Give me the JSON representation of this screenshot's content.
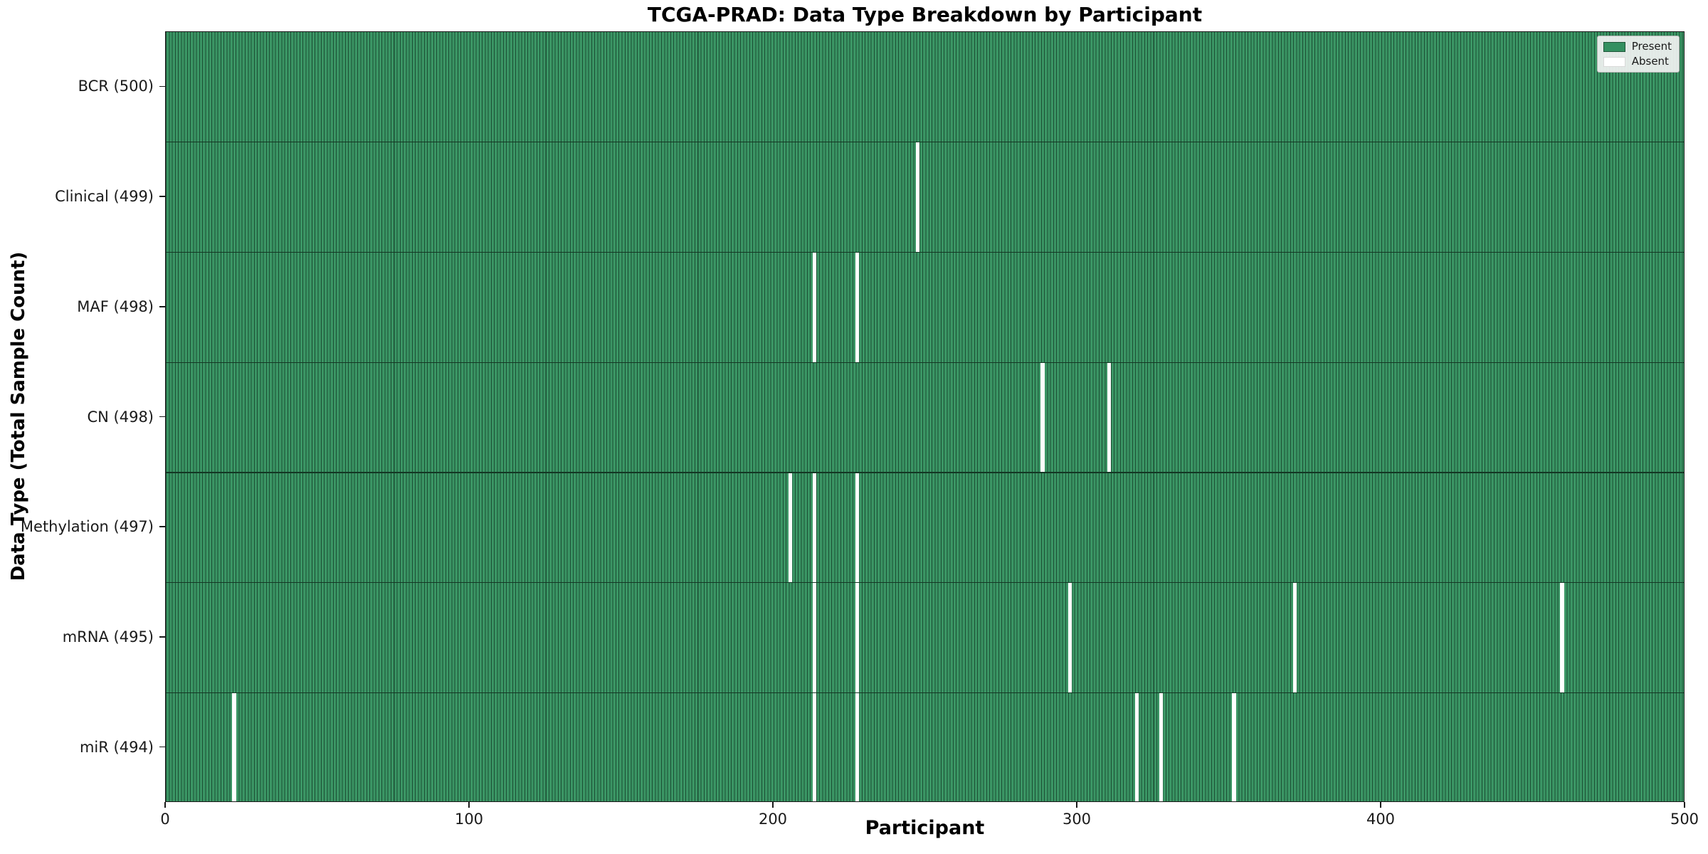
{
  "title": "TCGA-PRAD: Data Type Breakdown by Participant",
  "colors": {
    "present_fill": "#3b9665",
    "bar_edge": "#1b4d33",
    "row_divider": "#143724",
    "absent": "#ffffff",
    "axis": "#1a1a1a",
    "legend_bg": "rgba(242,242,242,0.92)",
    "legend_border": "#b3b3b3"
  },
  "chart_data": {
    "type": "heatmap",
    "title": "TCGA-PRAD: Data Type Breakdown by Participant",
    "xlabel": "Participant",
    "ylabel": "Data Type (Total Sample Count)",
    "x_ticks": [
      0,
      100,
      200,
      300,
      400,
      500
    ],
    "xlim": [
      0,
      500
    ],
    "n_participants": 500,
    "grid": false,
    "legend_position": "upper right",
    "legend": [
      {
        "label": "Present",
        "color": "#349060"
      },
      {
        "label": "Absent",
        "color": "#ffffff"
      }
    ],
    "rows": [
      {
        "data_type": "BCR",
        "label": "BCR (500)",
        "total": 500,
        "absent_participants": []
      },
      {
        "data_type": "Clinical",
        "label": "Clinical (499)",
        "total": 499,
        "absent_participants": [
          247
        ]
      },
      {
        "data_type": "MAF",
        "label": "MAF (498)",
        "total": 498,
        "absent_participants": [
          213,
          227
        ]
      },
      {
        "data_type": "CN",
        "label": "CN (498)",
        "total": 498,
        "absent_participants": [
          288,
          310
        ]
      },
      {
        "data_type": "Methylation",
        "label": "Methylation (497)",
        "total": 497,
        "absent_participants": [
          205,
          213,
          227
        ]
      },
      {
        "data_type": "mRNA",
        "label": "mRNA (495)",
        "total": 495,
        "absent_participants": [
          213,
          227,
          297,
          371,
          459
        ]
      },
      {
        "data_type": "miR",
        "label": "miR (494)",
        "total": 494,
        "absent_participants": [
          22,
          213,
          227,
          319,
          327,
          351
        ]
      }
    ]
  }
}
